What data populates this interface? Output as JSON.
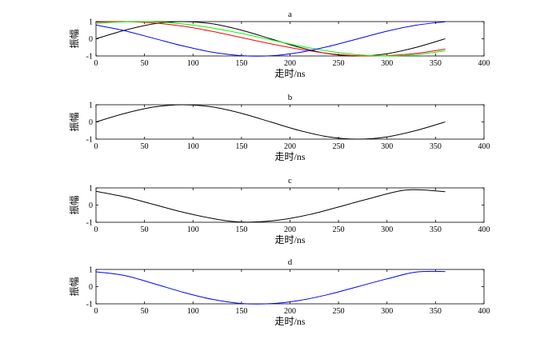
{
  "chart_data": [
    {
      "type": "line",
      "title": "a",
      "xlabel": "走时/ns",
      "ylabel": "振幅",
      "xlim": [
        0,
        400
      ],
      "ylim": [
        -1,
        1
      ],
      "xticks": [
        "0",
        "50",
        "100",
        "150",
        "200",
        "250",
        "300",
        "350",
        "400"
      ],
      "yticks": [
        "-1",
        "0",
        "1"
      ],
      "grid": false,
      "series": [
        {
          "color": "#000000",
          "x": [
            0,
            30,
            60,
            90,
            120,
            150,
            180,
            210,
            240,
            270,
            300,
            330,
            360
          ],
          "y": [
            0,
            0.5,
            0.87,
            1,
            0.87,
            0.5,
            0,
            -0.5,
            -0.87,
            -1,
            -0.87,
            -0.5,
            0
          ]
        },
        {
          "color": "#ff0000",
          "x": [
            0,
            30,
            60,
            90,
            120,
            150,
            180,
            210,
            240,
            270,
            300,
            330,
            360
          ],
          "y": [
            0.97,
            1,
            0.92,
            0.73,
            0.43,
            0.07,
            -0.29,
            -0.61,
            -0.86,
            -0.99,
            -0.98,
            -0.85,
            -0.6
          ]
        },
        {
          "color": "#00ff00",
          "x": [
            0,
            30,
            60,
            90,
            120,
            150,
            180,
            210,
            240,
            270,
            300,
            330,
            360
          ],
          "y": [
            0.9,
            0.99,
            0.98,
            0.86,
            0.63,
            0.31,
            -0.06,
            -0.42,
            -0.72,
            -0.93,
            -1,
            -0.92,
            -0.7
          ]
        },
        {
          "color": "#0000ff",
          "x": [
            0,
            30,
            60,
            90,
            120,
            150,
            180,
            210,
            240,
            270,
            300,
            330,
            360
          ],
          "y": [
            0.8,
            0.46,
            0.02,
            -0.42,
            -0.78,
            -0.98,
            -0.99,
            -0.79,
            -0.44,
            0,
            0.44,
            0.79,
            0.99
          ]
        }
      ]
    },
    {
      "type": "line",
      "title": "b",
      "xlabel": "走时/ns",
      "ylabel": "振幅",
      "xlim": [
        0,
        400
      ],
      "ylim": [
        -1,
        1
      ],
      "xticks": [
        "0",
        "50",
        "100",
        "150",
        "200",
        "250",
        "300",
        "350",
        "400"
      ],
      "yticks": [
        "-1",
        "0",
        "1"
      ],
      "grid": false,
      "series": [
        {
          "color": "#000000",
          "x": [
            0,
            30,
            60,
            90,
            120,
            150,
            180,
            210,
            240,
            270,
            300,
            330,
            360
          ],
          "y": [
            0,
            0.5,
            0.87,
            1,
            0.87,
            0.5,
            0,
            -0.5,
            -0.87,
            -1,
            -0.87,
            -0.5,
            0
          ]
        }
      ]
    },
    {
      "type": "line",
      "title": "c",
      "xlabel": "走时/ns",
      "ylabel": "振幅",
      "xlim": [
        0,
        400
      ],
      "ylim": [
        -1,
        1
      ],
      "xticks": [
        "0",
        "50",
        "100",
        "150",
        "200",
        "250",
        "300",
        "350",
        "400"
      ],
      "yticks": [
        "-1",
        "0",
        "1"
      ],
      "grid": false,
      "series": [
        {
          "color": "#000000",
          "x": [
            0,
            30,
            60,
            90,
            120,
            140,
            160,
            190,
            220,
            250,
            280,
            320,
            360
          ],
          "y": [
            0.8,
            0.47,
            0.03,
            -0.42,
            -0.78,
            -0.95,
            -0.99,
            -0.86,
            -0.55,
            -0.11,
            0.35,
            0.88,
            0.78
          ]
        }
      ]
    },
    {
      "type": "line",
      "title": "d",
      "xlabel": "走时/ns",
      "ylabel": "振幅",
      "xlim": [
        0,
        400
      ],
      "ylim": [
        -1,
        1
      ],
      "xticks": [
        "0",
        "50",
        "100",
        "150",
        "200",
        "250",
        "300",
        "350",
        "400"
      ],
      "yticks": [
        "-1",
        "0",
        "1"
      ],
      "grid": false,
      "series": [
        {
          "color": "#0000ff",
          "x": [
            0,
            30,
            60,
            90,
            120,
            150,
            180,
            210,
            240,
            270,
            300,
            330,
            360
          ],
          "y": [
            0.86,
            0.64,
            0.17,
            -0.33,
            -0.74,
            -0.98,
            -0.99,
            -0.8,
            -0.45,
            0,
            0.45,
            0.85,
            0.88
          ]
        }
      ]
    }
  ]
}
